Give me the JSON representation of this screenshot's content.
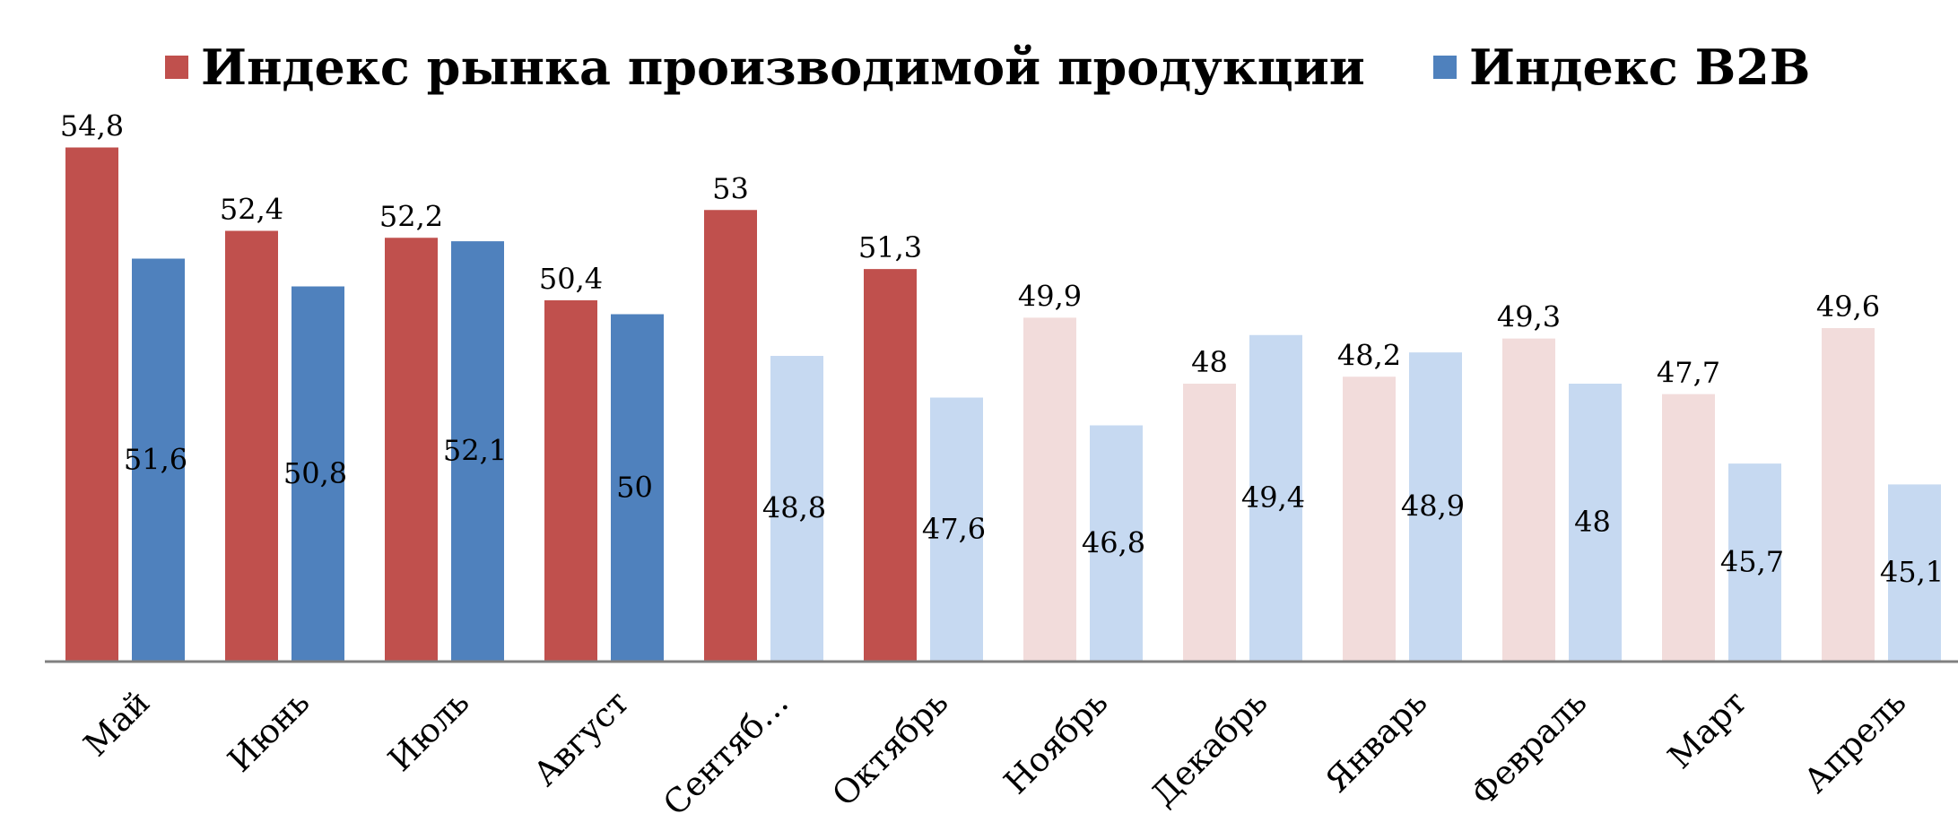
{
  "chart_data": {
    "type": "bar",
    "title": "",
    "xlabel": "",
    "ylabel": "",
    "ylim": [
      40,
      56
    ],
    "grid": false,
    "legend_position": "top",
    "categories": [
      "Май",
      "Июнь",
      "Июль",
      "Август",
      "Сентяб…",
      "Октябрь",
      "Ноябрь",
      "Декабрь",
      "Январь",
      "Февраль",
      "Март",
      "Апрель"
    ],
    "series": [
      {
        "name": "Индекс рынка производимой продукции",
        "color": "#c0504d",
        "faded_color": "#f2dcdb",
        "values": [
          54.8,
          52.4,
          52.2,
          50.4,
          53,
          51.3,
          49.9,
          48,
          48.2,
          49.3,
          47.7,
          49.6
        ],
        "labels": [
          "54,8",
          "52,4",
          "52,2",
          "50,4",
          "53",
          "51,3",
          "49,9",
          "48",
          "48,2",
          "49,3",
          "47,7",
          "49,6"
        ],
        "faded": [
          false,
          false,
          false,
          false,
          false,
          false,
          true,
          true,
          true,
          true,
          true,
          true
        ]
      },
      {
        "name": "Индекс B2B",
        "color": "#4f81bd",
        "faded_color": "#c6d9f1",
        "values": [
          51.6,
          50.8,
          52.1,
          50,
          48.8,
          47.6,
          46.8,
          49.4,
          48.9,
          48,
          45.7,
          45.1
        ],
        "labels": [
          "51,6",
          "50,8",
          "52,1",
          "50",
          "48,8",
          "47,6",
          "46,8",
          "49,4",
          "48,9",
          "48",
          "45,7",
          "45,1"
        ],
        "faded": [
          false,
          false,
          false,
          false,
          true,
          true,
          true,
          true,
          true,
          true,
          true,
          true
        ]
      }
    ]
  }
}
